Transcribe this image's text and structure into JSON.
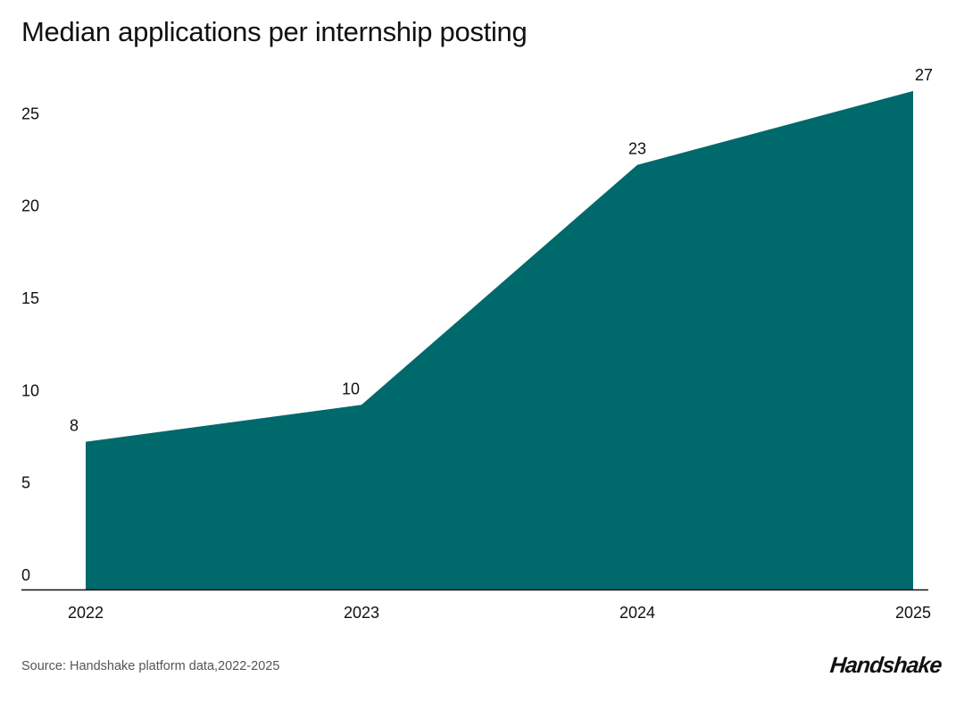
{
  "chart_data": {
    "type": "area",
    "title": "Median applications per internship posting",
    "categories": [
      "2022",
      "2023",
      "2024",
      "2025"
    ],
    "values": [
      8,
      10,
      23,
      27
    ],
    "data_labels": [
      "8",
      "10",
      "23",
      "27"
    ],
    "y_ticks": [
      "0",
      "5",
      "10",
      "15",
      "20",
      "25"
    ],
    "ylim": [
      0,
      27
    ],
    "xlabel": "",
    "ylabel": "",
    "grid": false,
    "legend": "none",
    "fill_color": "#00696B"
  },
  "footer": {
    "source": "Source: Handshake platform data,2022-2025",
    "logo": "Handshake"
  }
}
